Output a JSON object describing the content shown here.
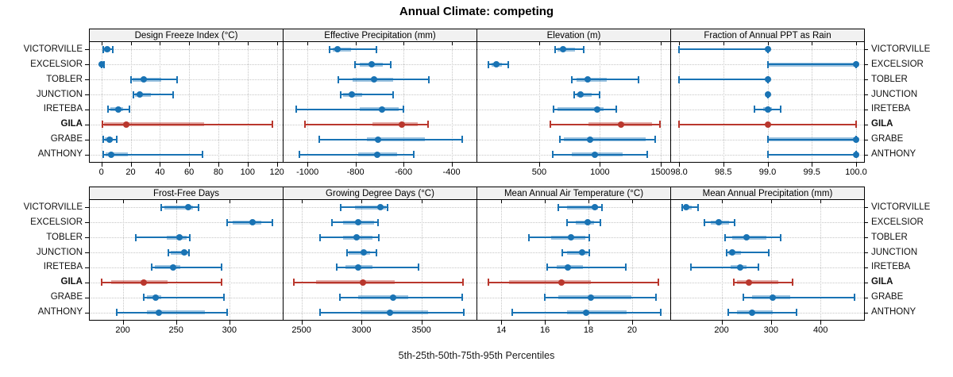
{
  "title": "Annual Climate: competing",
  "footer": "5th-25th-50th-75th-95th Percentiles",
  "percentiles": [
    "5th",
    "25th",
    "50th",
    "75th",
    "95th"
  ],
  "sites": [
    "VICTORVILLE",
    "EXCELSIOR",
    "TOBLER",
    "JUNCTION",
    "IRETEBA",
    "GILA",
    "GRABE",
    "ANTHONY"
  ],
  "highlight_site": "GILA",
  "colors": {
    "normal": "#1973B4",
    "highlight": "#B9372D",
    "grid": "#C6C6C6",
    "strip_bg": "#F1F1F1",
    "border": "#000000"
  },
  "chart_data": {
    "type": "trellis-percentile-intervals",
    "layout": "4 cols x 2 rows, shared site y-axis",
    "legend_position": "none",
    "grid": "dotted",
    "panels": [
      {
        "title": "Design Freeze Index (°C)",
        "xlim": [
          -8,
          124
        ],
        "ticks": [
          0,
          20,
          40,
          60,
          80,
          100,
          120
        ],
        "tick_labels": [
          "0",
          "20",
          "40",
          "60",
          "80",
          "100",
          "120"
        ],
        "values": [
          [
            1,
            2,
            4,
            6,
            8
          ],
          [
            0,
            0,
            0.4,
            1,
            2
          ],
          [
            20,
            21.5,
            29,
            41,
            52
          ],
          [
            22,
            23,
            26,
            34,
            49
          ],
          [
            4.5,
            6,
            11.5,
            15,
            19
          ],
          [
            0.5,
            2,
            17,
            70,
            117
          ],
          [
            1,
            2.5,
            5.5,
            8,
            10.5
          ],
          [
            1.5,
            3,
            6.5,
            18,
            69
          ]
        ]
      },
      {
        "title": "Effective Precipitation (mm)",
        "xlim": [
          -1100,
          -296
        ],
        "ticks": [
          -1000,
          -800,
          -600,
          -400
        ],
        "tick_labels": [
          "-1000",
          "-800",
          "-600",
          "-400"
        ],
        "values": [
          [
            -907,
            -895,
            -874,
            -820,
            -712
          ],
          [
            -801,
            -783,
            -732,
            -685,
            -653
          ],
          [
            -871,
            -812,
            -723,
            -645,
            -496
          ],
          [
            -861,
            -853,
            -817,
            -772,
            -642
          ],
          [
            -1048,
            -783,
            -691,
            -621,
            -601
          ],
          [
            -1012,
            -729,
            -607,
            -540,
            -498
          ],
          [
            -952,
            -752,
            -707,
            -512,
            -356
          ],
          [
            -1033,
            -788,
            -710,
            -628,
            -556
          ]
        ]
      },
      {
        "title": "Elevation (m)",
        "xlim": [
          -10,
          1580
        ],
        "ticks": [
          500,
          1000,
          1500
        ],
        "tick_labels": [
          "500",
          "1000",
          "1500"
        ],
        "values": [
          [
            629,
            652,
            694,
            795,
            868
          ],
          [
            84,
            106,
            149,
            193,
            247
          ],
          [
            770,
            805,
            900,
            1055,
            1315
          ],
          [
            788,
            806,
            842,
            935,
            995
          ],
          [
            618,
            650,
            977,
            1032,
            1136
          ],
          [
            592,
            908,
            1174,
            1429,
            1496
          ],
          [
            672,
            705,
            917,
            1380,
            1457
          ],
          [
            611,
            770,
            956,
            1185,
            1392
          ]
        ]
      },
      {
        "title": "Fraction of Annual PPT as Rain",
        "xlim": [
          97.91,
          100.09
        ],
        "ticks": [
          98.0,
          98.5,
          99.0,
          99.5,
          100.0
        ],
        "tick_labels": [
          "98.0",
          "98.5",
          "99.0",
          "99.5",
          "100.0"
        ],
        "values": [
          [
            98,
            99,
            99,
            99,
            99
          ],
          [
            99,
            99,
            100,
            100,
            100
          ],
          [
            98,
            99,
            99,
            99,
            99
          ],
          [
            99,
            99,
            99,
            99,
            99
          ],
          [
            98.85,
            98.95,
            99,
            99.05,
            99.15
          ],
          [
            98,
            99,
            99,
            99,
            100
          ],
          [
            99,
            99,
            100,
            100,
            100
          ],
          [
            99,
            100,
            100,
            100,
            100
          ]
        ]
      },
      {
        "title": "Frost-Free Days",
        "xlim": [
          169,
          350
        ],
        "ticks": [
          200,
          250,
          300
        ],
        "tick_labels": [
          "200",
          "250",
          "300"
        ],
        "values": [
          [
            236,
            239,
            261,
            266,
            271
          ],
          [
            298,
            303,
            322,
            330,
            340
          ],
          [
            212,
            241,
            253,
            260,
            263
          ],
          [
            243,
            245,
            258,
            261,
            262
          ],
          [
            227,
            230,
            247,
            254,
            293
          ],
          [
            180,
            189,
            220,
            242,
            293
          ],
          [
            220,
            223,
            231,
            236,
            295
          ],
          [
            194,
            223,
            234,
            277,
            298
          ]
        ]
      },
      {
        "title": "Growing Degree Days (°C)",
        "xlim": [
          2350,
          3960
        ],
        "ticks": [
          2500,
          3000,
          3500
        ],
        "tick_labels": [
          "2500",
          "3000",
          "3500"
        ],
        "values": [
          [
            2830,
            2945,
            3155,
            3205,
            3215
          ],
          [
            2755,
            2850,
            2970,
            3105,
            3140
          ],
          [
            2655,
            2850,
            2960,
            3095,
            3145
          ],
          [
            2880,
            2890,
            3020,
            3070,
            3125
          ],
          [
            2795,
            2865,
            2975,
            3095,
            3475
          ],
          [
            2435,
            2620,
            3015,
            3280,
            3850
          ],
          [
            2820,
            2970,
            3265,
            3390,
            3840
          ],
          [
            2655,
            2995,
            3235,
            3555,
            3855
          ]
        ]
      },
      {
        "title": "Mean Annual Air Temperature (°C)",
        "xlim": [
          12.9,
          21.75
        ],
        "ticks": [
          14,
          16,
          18,
          20
        ],
        "tick_labels": [
          "14",
          "16",
          "18",
          "20"
        ],
        "values": [
          [
            16.6,
            17.0,
            18.3,
            18.45,
            18.6
          ],
          [
            17.0,
            17.4,
            17.95,
            18.25,
            18.55
          ],
          [
            15.25,
            16.3,
            17.2,
            17.85,
            18.05
          ],
          [
            16.8,
            17.0,
            17.7,
            17.95,
            18.05
          ],
          [
            16.1,
            16.55,
            17.05,
            17.75,
            19.7
          ],
          [
            13.4,
            14.35,
            16.75,
            18.1,
            21.2
          ],
          [
            16.0,
            16.6,
            18.1,
            19.95,
            21.1
          ],
          [
            14.5,
            17.0,
            17.9,
            19.75,
            21.3
          ]
        ]
      },
      {
        "title": "Mean Annual Precipitation (mm)",
        "xlim": [
          98,
          488
        ],
        "ticks": [
          200,
          300,
          400
        ],
        "tick_labels": [
          "200",
          "300",
          "400"
        ],
        "values": [
          [
            120,
            123,
            129,
            140,
            153
          ],
          [
            166,
            179,
            194,
            215,
            227
          ],
          [
            207,
            221,
            251,
            290,
            320
          ],
          [
            210,
            214,
            221,
            240,
            295
          ],
          [
            138,
            219,
            237,
            250,
            275
          ],
          [
            225,
            232,
            255,
            314,
            344
          ],
          [
            244,
            261,
            303,
            338,
            469
          ],
          [
            214,
            232,
            261,
            303,
            352
          ]
        ]
      }
    ]
  }
}
